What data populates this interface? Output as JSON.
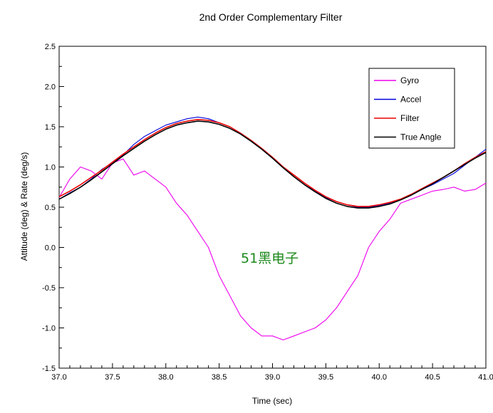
{
  "chart_data": {
    "type": "line",
    "title": "2nd Order Complementary Filter",
    "xlabel": "Time (sec)",
    "ylabel": "Attitude (deg) & Rate (deg/s)",
    "xlim": [
      37.0,
      41.0
    ],
    "ylim": [
      -1.5,
      2.5
    ],
    "x_ticks": [
      "37.0",
      "37.5",
      "38.0",
      "38.5",
      "39.0",
      "39.5",
      "40.0",
      "40.5",
      "41.0"
    ],
    "y_ticks": [
      "2.5",
      "2.0",
      "1.5",
      "1.0",
      "0.5",
      "0.0",
      "-0.5",
      "-1.0",
      "-1.5"
    ],
    "grid": false,
    "legend_position": "top-right",
    "watermark": "51黑电子",
    "x": [
      37.0,
      37.1,
      37.2,
      37.3,
      37.4,
      37.5,
      37.6,
      37.7,
      37.8,
      37.9,
      38.0,
      38.1,
      38.2,
      38.3,
      38.4,
      38.5,
      38.6,
      38.7,
      38.8,
      38.9,
      39.0,
      39.1,
      39.2,
      39.3,
      39.4,
      39.5,
      39.6,
      39.7,
      39.8,
      39.9,
      40.0,
      40.1,
      40.2,
      40.3,
      40.4,
      40.5,
      40.6,
      40.7,
      40.8,
      40.9,
      41.0
    ],
    "series": [
      {
        "name": "Gyro",
        "color": "#ee00ee",
        "values": [
          0.62,
          0.85,
          1.0,
          0.95,
          0.85,
          1.05,
          1.1,
          0.9,
          0.95,
          0.85,
          0.75,
          0.55,
          0.4,
          0.2,
          0.0,
          -0.35,
          -0.6,
          -0.85,
          -1.0,
          -1.1,
          -1.1,
          -1.15,
          -1.1,
          -1.05,
          -1.0,
          -0.9,
          -0.75,
          -0.55,
          -0.35,
          0.0,
          0.2,
          0.35,
          0.55,
          0.6,
          0.65,
          0.7,
          0.72,
          0.75,
          0.7,
          0.72,
          0.8
        ]
      },
      {
        "name": "Accel",
        "color": "#0000dd",
        "values": [
          0.6,
          0.68,
          0.75,
          0.85,
          0.97,
          1.05,
          1.15,
          1.28,
          1.38,
          1.45,
          1.52,
          1.56,
          1.6,
          1.62,
          1.6,
          1.55,
          1.5,
          1.42,
          1.32,
          1.22,
          1.12,
          1.0,
          0.9,
          0.8,
          0.7,
          0.62,
          0.57,
          0.53,
          0.5,
          0.5,
          0.52,
          0.55,
          0.6,
          0.65,
          0.72,
          0.78,
          0.85,
          0.92,
          1.02,
          1.12,
          1.22
        ]
      },
      {
        "name": "Filter",
        "color": "#ee0000",
        "values": [
          0.63,
          0.7,
          0.78,
          0.87,
          0.96,
          1.06,
          1.16,
          1.25,
          1.34,
          1.42,
          1.49,
          1.54,
          1.57,
          1.59,
          1.58,
          1.55,
          1.5,
          1.42,
          1.33,
          1.23,
          1.12,
          1.0,
          0.9,
          0.8,
          0.71,
          0.63,
          0.57,
          0.53,
          0.51,
          0.51,
          0.53,
          0.56,
          0.6,
          0.66,
          0.73,
          0.8,
          0.87,
          0.95,
          1.04,
          1.12,
          1.19
        ]
      },
      {
        "name": "True Angle",
        "color": "#000000",
        "values": [
          0.6,
          0.67,
          0.75,
          0.84,
          0.94,
          1.04,
          1.14,
          1.23,
          1.32,
          1.4,
          1.47,
          1.52,
          1.55,
          1.57,
          1.56,
          1.53,
          1.48,
          1.41,
          1.32,
          1.22,
          1.11,
          0.99,
          0.88,
          0.78,
          0.69,
          0.61,
          0.55,
          0.51,
          0.49,
          0.49,
          0.51,
          0.54,
          0.59,
          0.65,
          0.72,
          0.79,
          0.87,
          0.95,
          1.03,
          1.11,
          1.18
        ]
      }
    ]
  }
}
